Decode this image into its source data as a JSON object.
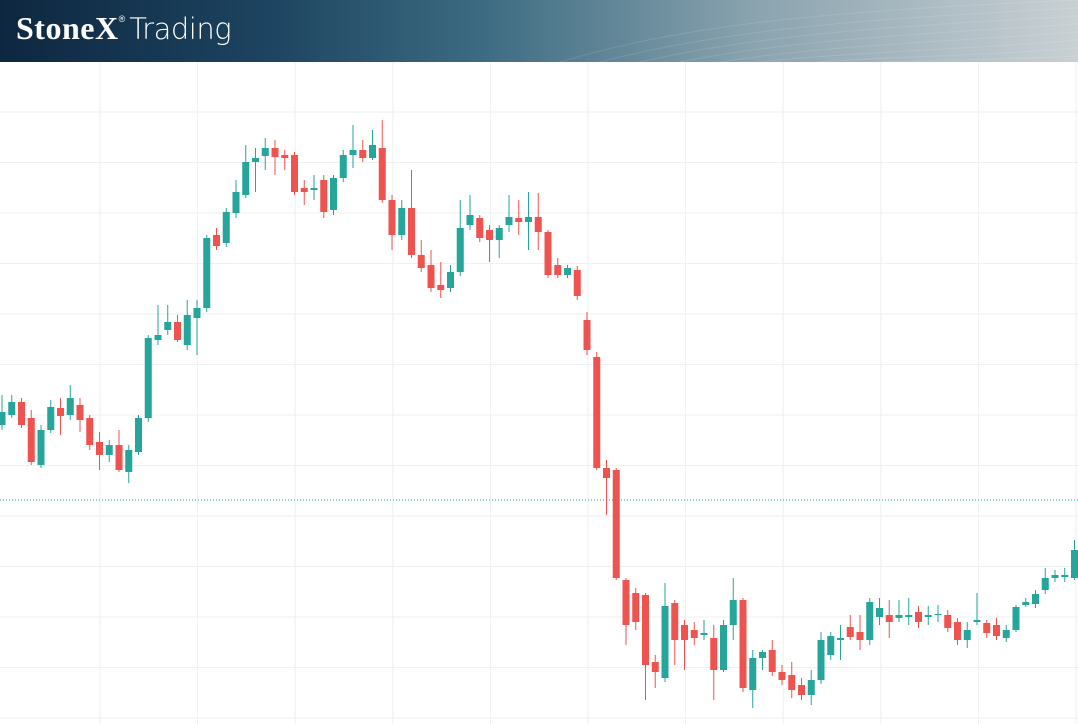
{
  "header": {
    "brand": "StoneX",
    "brand_mark": "®",
    "product": "Trading"
  },
  "chart_data": {
    "type": "candlestick",
    "up_color": "#26a69a",
    "down_color": "#ef5350",
    "ylim": [
      0,
      662
    ],
    "grid": true,
    "price_line": 224,
    "price_line_color": "#26a69a",
    "open": [
      299,
      309,
      322,
      306,
      259,
      294,
      316,
      309,
      319,
      306,
      282,
      269,
      279,
      252,
      272,
      306,
      384,
      394,
      402,
      379,
      406,
      416,
      489,
      481,
      511,
      529,
      562,
      568,
      576,
      569,
      569,
      536,
      534,
      544,
      514,
      546,
      569,
      574,
      566,
      576,
      524,
      489,
      516,
      469,
      459,
      439,
      436,
      452,
      499,
      506,
      494,
      484,
      499,
      506,
      502,
      507,
      492,
      459,
      449,
      454,
      404,
      367,
      256,
      254,
      144,
      131,
      129,
      62,
      46,
      121,
      99,
      94,
      89,
      86,
      54,
      99,
      124,
      34,
      66,
      74,
      52,
      49,
      39,
      29,
      44,
      69,
      84,
      97,
      92,
      84,
      107,
      109,
      106,
      107,
      112,
      107,
      109,
      109,
      102,
      84,
      102,
      101,
      99,
      86,
      94,
      119,
      120,
      134,
      146,
      147,
      146
    ],
    "high": [
      329,
      329,
      326,
      314,
      299,
      324,
      326,
      339,
      326,
      309,
      292,
      284,
      294,
      279,
      309,
      389,
      419,
      419,
      409,
      424,
      424,
      489,
      496,
      516,
      544,
      579,
      576,
      586,
      584,
      574,
      572,
      544,
      549,
      549,
      549,
      574,
      599,
      584,
      594,
      604,
      529,
      524,
      554,
      484,
      474,
      462,
      459,
      524,
      529,
      509,
      499,
      499,
      529,
      524,
      532,
      531,
      494,
      466,
      459,
      458,
      412,
      372,
      264,
      256,
      146,
      136,
      131,
      69,
      141,
      124,
      104,
      102,
      104,
      99,
      104,
      146,
      126,
      74,
      74,
      84,
      59,
      62,
      46,
      54,
      92,
      92,
      99,
      109,
      109,
      126,
      126,
      124,
      124,
      126,
      118,
      118,
      119,
      114,
      106,
      102,
      131,
      104,
      106,
      99,
      119,
      126,
      134,
      156,
      154,
      156,
      184
    ],
    "low": [
      294,
      306,
      296,
      259,
      256,
      291,
      289,
      304,
      292,
      274,
      254,
      262,
      252,
      241,
      269,
      302,
      379,
      389,
      382,
      374,
      369,
      412,
      474,
      477,
      506,
      526,
      532,
      554,
      549,
      554,
      529,
      519,
      524,
      506,
      509,
      542,
      556,
      562,
      564,
      521,
      474,
      484,
      466,
      452,
      432,
      426,
      432,
      448,
      494,
      482,
      462,
      466,
      492,
      489,
      474,
      474,
      446,
      446,
      446,
      424,
      369,
      254,
      209,
      144,
      79,
      94,
      24,
      36,
      42,
      59,
      54,
      79,
      84,
      24,
      52,
      84,
      32,
      16,
      54,
      48,
      39,
      26,
      24,
      19,
      40,
      64,
      64,
      84,
      74,
      79,
      99,
      86,
      102,
      99,
      96,
      99,
      102,
      92,
      79,
      76,
      99,
      86,
      84,
      82,
      92,
      117,
      116,
      130,
      142,
      142,
      144
    ],
    "close": [
      312,
      322,
      299,
      262,
      294,
      317,
      308,
      326,
      304,
      279,
      269,
      279,
      254,
      274,
      306,
      386,
      389,
      402,
      384,
      409,
      416,
      486,
      478,
      512,
      532,
      562,
      566,
      576,
      567,
      566,
      532,
      532,
      536,
      512,
      546,
      569,
      574,
      566,
      579,
      524,
      489,
      516,
      469,
      456,
      436,
      434,
      452,
      496,
      509,
      486,
      484,
      496,
      507,
      502,
      507,
      492,
      449,
      449,
      456,
      428,
      374,
      256,
      246,
      146,
      99,
      102,
      59,
      52,
      118,
      84,
      84,
      86,
      91,
      54,
      99,
      124,
      36,
      66,
      72,
      52,
      44,
      34,
      29,
      44,
      84,
      88,
      86,
      87,
      84,
      122,
      116,
      102,
      109,
      109,
      102,
      109,
      110,
      96,
      84,
      94,
      104,
      91,
      88,
      94,
      117,
      122,
      130,
      146,
      149,
      149,
      174
    ]
  }
}
